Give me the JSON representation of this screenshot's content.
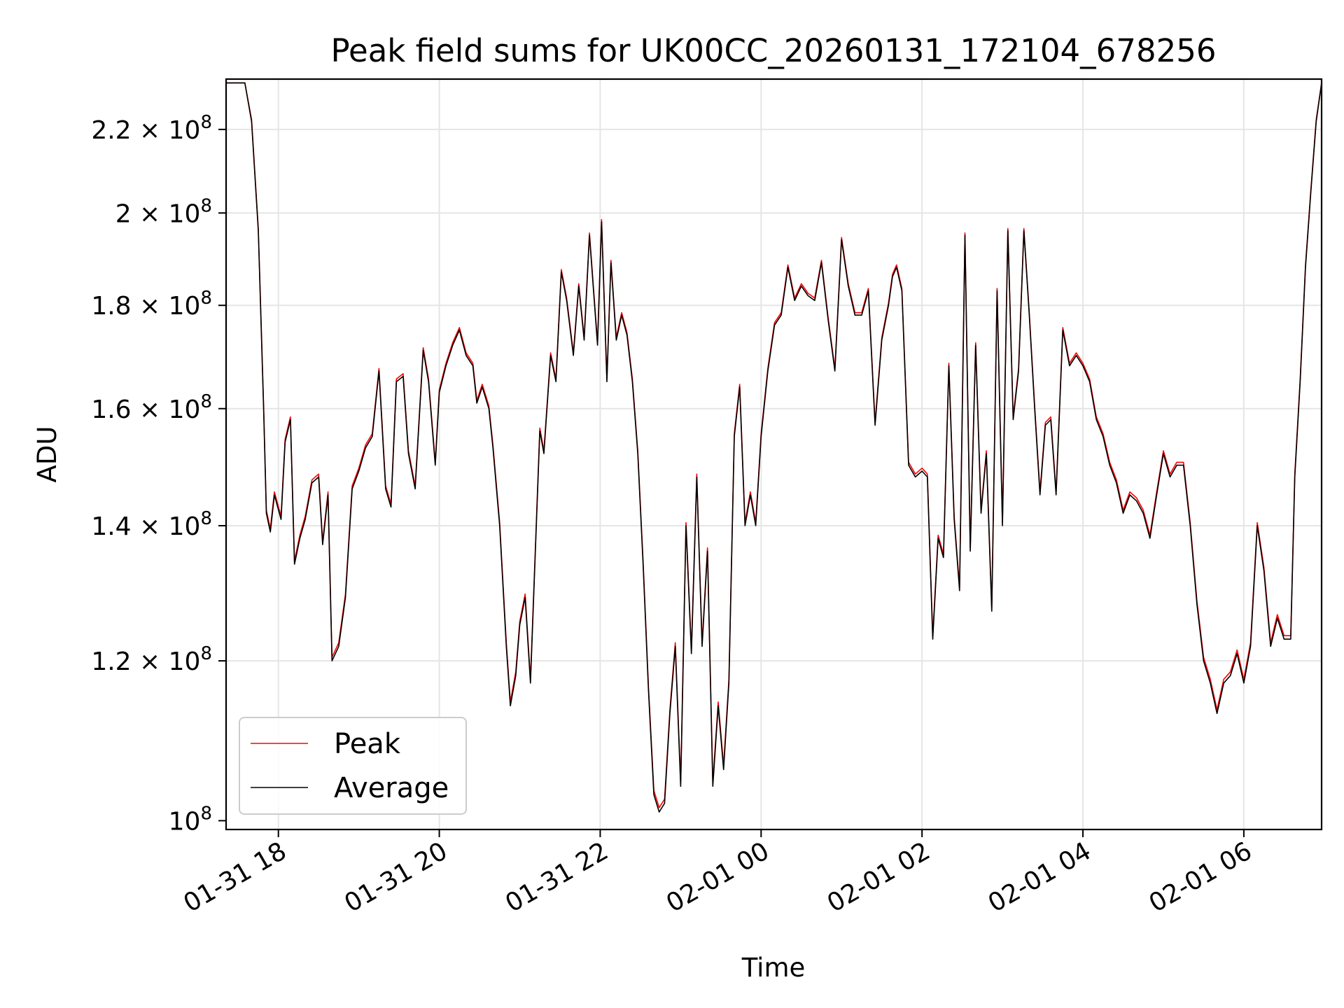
{
  "chart_data": {
    "type": "line",
    "title": "Peak field sums for UK00CC_20260131_172104_678256",
    "xlabel": "Time",
    "ylabel": "ADU",
    "y_scale": "log",
    "ylim": [
      99000000,
      233000000
    ],
    "xlim": [
      "2026-01-31 17:21",
      "2026-02-01 06:58"
    ],
    "grid": true,
    "legend_position": "lower-left",
    "x_ticks": [
      {
        "t": "2026-01-31 18:00",
        "label": "01-31 18"
      },
      {
        "t": "2026-01-31 20:00",
        "label": "01-31 20"
      },
      {
        "t": "2026-01-31 22:00",
        "label": "01-31 22"
      },
      {
        "t": "2026-02-01 00:00",
        "label": "02-01 00"
      },
      {
        "t": "2026-02-01 02:00",
        "label": "02-01 02"
      },
      {
        "t": "2026-02-01 04:00",
        "label": "02-01 04"
      },
      {
        "t": "2026-02-01 06:00",
        "label": "02-01 06"
      }
    ],
    "y_ticks": [
      {
        "value": 100000000,
        "mantissa": "",
        "exp": "8"
      },
      {
        "value": 120000000,
        "mantissa": "1.2",
        "exp": "8"
      },
      {
        "value": 140000000,
        "mantissa": "1.4",
        "exp": "8"
      },
      {
        "value": 160000000,
        "mantissa": "1.6",
        "exp": "8"
      },
      {
        "value": 180000000,
        "mantissa": "1.8",
        "exp": "8"
      },
      {
        "value": 200000000,
        "mantissa": "2",
        "exp": "8"
      },
      {
        "value": 220000000,
        "mantissa": "2.2",
        "exp": "8"
      }
    ],
    "series": [
      {
        "name": "Peak",
        "color": "#ff0000"
      },
      {
        "name": "Average",
        "color": "#000000"
      }
    ],
    "x": [
      "2026-01-31 17:21",
      "2026-01-31 17:30",
      "2026-01-31 17:35",
      "2026-01-31 17:40",
      "2026-01-31 17:45",
      "2026-01-31 17:49",
      "2026-01-31 17:51",
      "2026-01-31 17:54",
      "2026-01-31 17:57",
      "2026-01-31 18:02",
      "2026-01-31 18:05",
      "2026-01-31 18:09",
      "2026-01-31 18:12",
      "2026-01-31 18:16",
      "2026-01-31 18:20",
      "2026-01-31 18:25",
      "2026-01-31 18:30",
      "2026-01-31 18:33",
      "2026-01-31 18:37",
      "2026-01-31 18:40",
      "2026-01-31 18:45",
      "2026-01-31 18:50",
      "2026-01-31 18:55",
      "2026-01-31 19:00",
      "2026-01-31 19:05",
      "2026-01-31 19:10",
      "2026-01-31 19:15",
      "2026-01-31 19:20",
      "2026-01-31 19:24",
      "2026-01-31 19:28",
      "2026-01-31 19:33",
      "2026-01-31 19:37",
      "2026-01-31 19:42",
      "2026-01-31 19:48",
      "2026-01-31 19:52",
      "2026-01-31 19:57",
      "2026-01-31 20:00",
      "2026-01-31 20:05",
      "2026-01-31 20:10",
      "2026-01-31 20:15",
      "2026-01-31 20:20",
      "2026-01-31 20:25",
      "2026-01-31 20:28",
      "2026-01-31 20:32",
      "2026-01-31 20:37",
      "2026-01-31 20:40",
      "2026-01-31 20:45",
      "2026-01-31 20:50",
      "2026-01-31 20:53",
      "2026-01-31 20:57",
      "2026-01-31 21:00",
      "2026-01-31 21:04",
      "2026-01-31 21:08",
      "2026-01-31 21:12",
      "2026-01-31 21:15",
      "2026-01-31 21:18",
      "2026-01-31 21:23",
      "2026-01-31 21:27",
      "2026-01-31 21:31",
      "2026-01-31 21:35",
      "2026-01-31 21:40",
      "2026-01-31 21:44",
      "2026-01-31 21:48",
      "2026-01-31 21:52",
      "2026-01-31 21:55",
      "2026-01-31 21:58",
      "2026-01-31 22:01",
      "2026-01-31 22:05",
      "2026-01-31 22:08",
      "2026-01-31 22:12",
      "2026-01-31 22:16",
      "2026-01-31 22:20",
      "2026-01-31 22:24",
      "2026-01-31 22:28",
      "2026-01-31 22:32",
      "2026-01-31 22:36",
      "2026-01-31 22:40",
      "2026-01-31 22:44",
      "2026-01-31 22:48",
      "2026-01-31 22:52",
      "2026-01-31 22:56",
      "2026-01-31 23:00",
      "2026-01-31 23:04",
      "2026-01-31 23:08",
      "2026-01-31 23:12",
      "2026-01-31 23:16",
      "2026-01-31 23:20",
      "2026-01-31 23:24",
      "2026-01-31 23:28",
      "2026-01-31 23:32",
      "2026-01-31 23:36",
      "2026-01-31 23:40",
      "2026-01-31 23:44",
      "2026-01-31 23:48",
      "2026-01-31 23:52",
      "2026-01-31 23:56",
      "2026-02-01 00:00",
      "2026-02-01 00:05",
      "2026-02-01 00:10",
      "2026-02-01 00:15",
      "2026-02-01 00:20",
      "2026-02-01 00:25",
      "2026-02-01 00:30",
      "2026-02-01 00:35",
      "2026-02-01 00:40",
      "2026-02-01 00:45",
      "2026-02-01 00:50",
      "2026-02-01 00:55",
      "2026-02-01 01:00",
      "2026-02-01 01:05",
      "2026-02-01 01:10",
      "2026-02-01 01:15",
      "2026-02-01 01:20",
      "2026-02-01 01:25",
      "2026-02-01 01:30",
      "2026-02-01 01:35",
      "2026-02-01 01:38",
      "2026-02-01 01:41",
      "2026-02-01 01:45",
      "2026-02-01 01:50",
      "2026-02-01 01:55",
      "2026-02-01 02:00",
      "2026-02-01 02:04",
      "2026-02-01 02:08",
      "2026-02-01 02:12",
      "2026-02-01 02:16",
      "2026-02-01 02:20",
      "2026-02-01 02:24",
      "2026-02-01 02:28",
      "2026-02-01 02:32",
      "2026-02-01 02:36",
      "2026-02-01 02:40",
      "2026-02-01 02:44",
      "2026-02-01 02:48",
      "2026-02-01 02:52",
      "2026-02-01 02:56",
      "2026-02-01 03:00",
      "2026-02-01 03:04",
      "2026-02-01 03:08",
      "2026-02-01 03:12",
      "2026-02-01 03:16",
      "2026-02-01 03:20",
      "2026-02-01 03:24",
      "2026-02-01 03:28",
      "2026-02-01 03:32",
      "2026-02-01 03:36",
      "2026-02-01 03:40",
      "2026-02-01 03:45",
      "2026-02-01 03:50",
      "2026-02-01 03:55",
      "2026-02-01 04:00",
      "2026-02-01 04:05",
      "2026-02-01 04:10",
      "2026-02-01 04:15",
      "2026-02-01 04:20",
      "2026-02-01 04:25",
      "2026-02-01 04:30",
      "2026-02-01 04:35",
      "2026-02-01 04:40",
      "2026-02-01 04:45",
      "2026-02-01 04:50",
      "2026-02-01 04:55",
      "2026-02-01 05:00",
      "2026-02-01 05:05",
      "2026-02-01 05:10",
      "2026-02-01 05:15",
      "2026-02-01 05:20",
      "2026-02-01 05:25",
      "2026-02-01 05:30",
      "2026-02-01 05:35",
      "2026-02-01 05:40",
      "2026-02-01 05:45",
      "2026-02-01 05:50",
      "2026-02-01 05:55",
      "2026-02-01 06:00",
      "2026-02-01 06:05",
      "2026-02-01 06:10",
      "2026-02-01 06:15",
      "2026-02-01 06:20",
      "2026-02-01 06:25",
      "2026-02-01 06:30",
      "2026-02-01 06:35",
      "2026-02-01 06:38",
      "2026-02-01 06:42",
      "2026-02-01 06:46",
      "2026-02-01 06:50",
      "2026-02-01 06:54",
      "2026-02-01 06:58"
    ],
    "average": [
      232000000,
      232000000,
      232000000,
      222000000,
      196000000,
      160000000,
      142000000,
      139000000,
      145000000,
      141000000,
      154000000,
      158000000,
      134000000,
      138000000,
      141000000,
      147000000,
      148000000,
      137000000,
      145000000,
      120000000,
      122000000,
      129000000,
      146000000,
      149000000,
      153000000,
      155000000,
      167000000,
      146000000,
      143000000,
      165000000,
      166000000,
      152000000,
      146000000,
      171000000,
      165000000,
      150000000,
      163000000,
      168000000,
      172000000,
      175000000,
      170000000,
      168000000,
      161000000,
      164000000,
      160000000,
      153000000,
      140000000,
      122000000,
      114000000,
      118000000,
      125000000,
      129000000,
      117000000,
      138000000,
      156000000,
      152000000,
      170000000,
      165000000,
      187000000,
      181000000,
      170000000,
      184000000,
      173000000,
      195000000,
      183000000,
      172000000,
      198000000,
      165000000,
      189000000,
      173000000,
      178000000,
      174000000,
      165000000,
      152000000,
      134000000,
      116000000,
      103000000,
      101000000,
      102000000,
      113000000,
      122000000,
      104000000,
      140000000,
      121000000,
      148000000,
      122000000,
      136000000,
      104000000,
      114000000,
      106000000,
      117000000,
      155000000,
      164000000,
      140000000,
      145000000,
      140000000,
      155000000,
      167000000,
      176000000,
      178000000,
      188000000,
      181000000,
      184000000,
      182000000,
      181000000,
      189000000,
      177000000,
      167000000,
      194000000,
      184000000,
      178000000,
      178000000,
      183000000,
      157000000,
      173000000,
      180000000,
      186000000,
      188000000,
      183000000,
      150000000,
      148000000,
      149000000,
      148000000,
      123000000,
      138000000,
      135000000,
      168000000,
      141000000,
      130000000,
      195000000,
      136000000,
      172000000,
      142000000,
      152000000,
      127000000,
      183000000,
      140000000,
      196000000,
      158000000,
      167000000,
      196000000,
      178000000,
      160000000,
      145000000,
      157000000,
      158000000,
      145000000,
      175000000,
      168000000,
      170000000,
      168000000,
      165000000,
      158000000,
      155000000,
      150000000,
      147000000,
      142000000,
      145000000,
      144000000,
      142000000,
      138000000,
      145000000,
      152000000,
      148000000,
      150000000,
      150000000,
      140000000,
      128000000,
      120000000,
      117000000,
      113000000,
      117000000,
      118000000,
      121000000,
      117000000,
      122000000,
      140000000,
      133000000,
      122000000,
      126000000,
      123000000,
      123000000,
      148000000,
      165000000,
      188000000,
      205000000,
      222000000,
      232000000
    ],
    "peak": [
      232000000,
      232000000,
      232000000,
      222500000,
      196500000,
      160500000,
      142500000,
      139500000,
      145500000,
      141500000,
      154500000,
      158500000,
      134500000,
      138500000,
      141500000,
      147500000,
      148500000,
      137500000,
      145500000,
      120500000,
      122500000,
      129500000,
      146500000,
      149500000,
      153500000,
      155500000,
      167500000,
      146500000,
      143500000,
      165500000,
      166500000,
      152500000,
      146500000,
      171500000,
      165500000,
      150500000,
      163500000,
      168500000,
      172500000,
      175500000,
      170500000,
      168500000,
      161500000,
      164500000,
      160500000,
      153500000,
      140500000,
      122500000,
      114500000,
      118500000,
      125500000,
      129500000,
      117500000,
      138500000,
      156500000,
      152500000,
      170500000,
      165500000,
      187500000,
      181500000,
      170500000,
      184500000,
      173500000,
      195500000,
      183500000,
      172500000,
      198500000,
      165500000,
      189500000,
      173500000,
      178500000,
      174500000,
      165500000,
      152500000,
      134500000,
      116500000,
      103500000,
      101500000,
      102500000,
      113500000,
      122500000,
      104500000,
      140500000,
      121500000,
      148500000,
      122500000,
      136500000,
      104500000,
      114500000,
      106500000,
      117500000,
      155500000,
      164500000,
      140500000,
      145500000,
      140500000,
      155500000,
      167500000,
      176500000,
      178500000,
      188500000,
      181500000,
      184500000,
      182500000,
      181500000,
      189500000,
      177500000,
      167500000,
      194500000,
      184500000,
      178500000,
      178500000,
      183500000,
      157500000,
      173500000,
      180500000,
      186500000,
      188500000,
      183500000,
      150500000,
      148500000,
      149500000,
      148500000,
      123500000,
      138500000,
      135500000,
      168500000,
      141500000,
      130500000,
      195500000,
      136500000,
      172500000,
      142500000,
      152500000,
      127500000,
      183500000,
      140500000,
      196500000,
      158500000,
      167500000,
      196500000,
      178500000,
      160500000,
      145500000,
      157500000,
      158500000,
      145500000,
      175500000,
      168500000,
      170500000,
      168500000,
      165500000,
      158500000,
      155500000,
      150500000,
      147500000,
      142500000,
      145500000,
      144500000,
      142500000,
      138500000,
      145500000,
      152500000,
      148500000,
      150500000,
      150500000,
      140500000,
      128500000,
      120500000,
      117500000,
      113500000,
      117500000,
      118500000,
      121500000,
      117500000,
      122500000,
      140500000,
      133500000,
      122500000,
      126500000,
      123500000,
      123500000,
      148500000,
      165500000,
      188500000,
      205500000,
      222500000,
      232000000
    ]
  }
}
